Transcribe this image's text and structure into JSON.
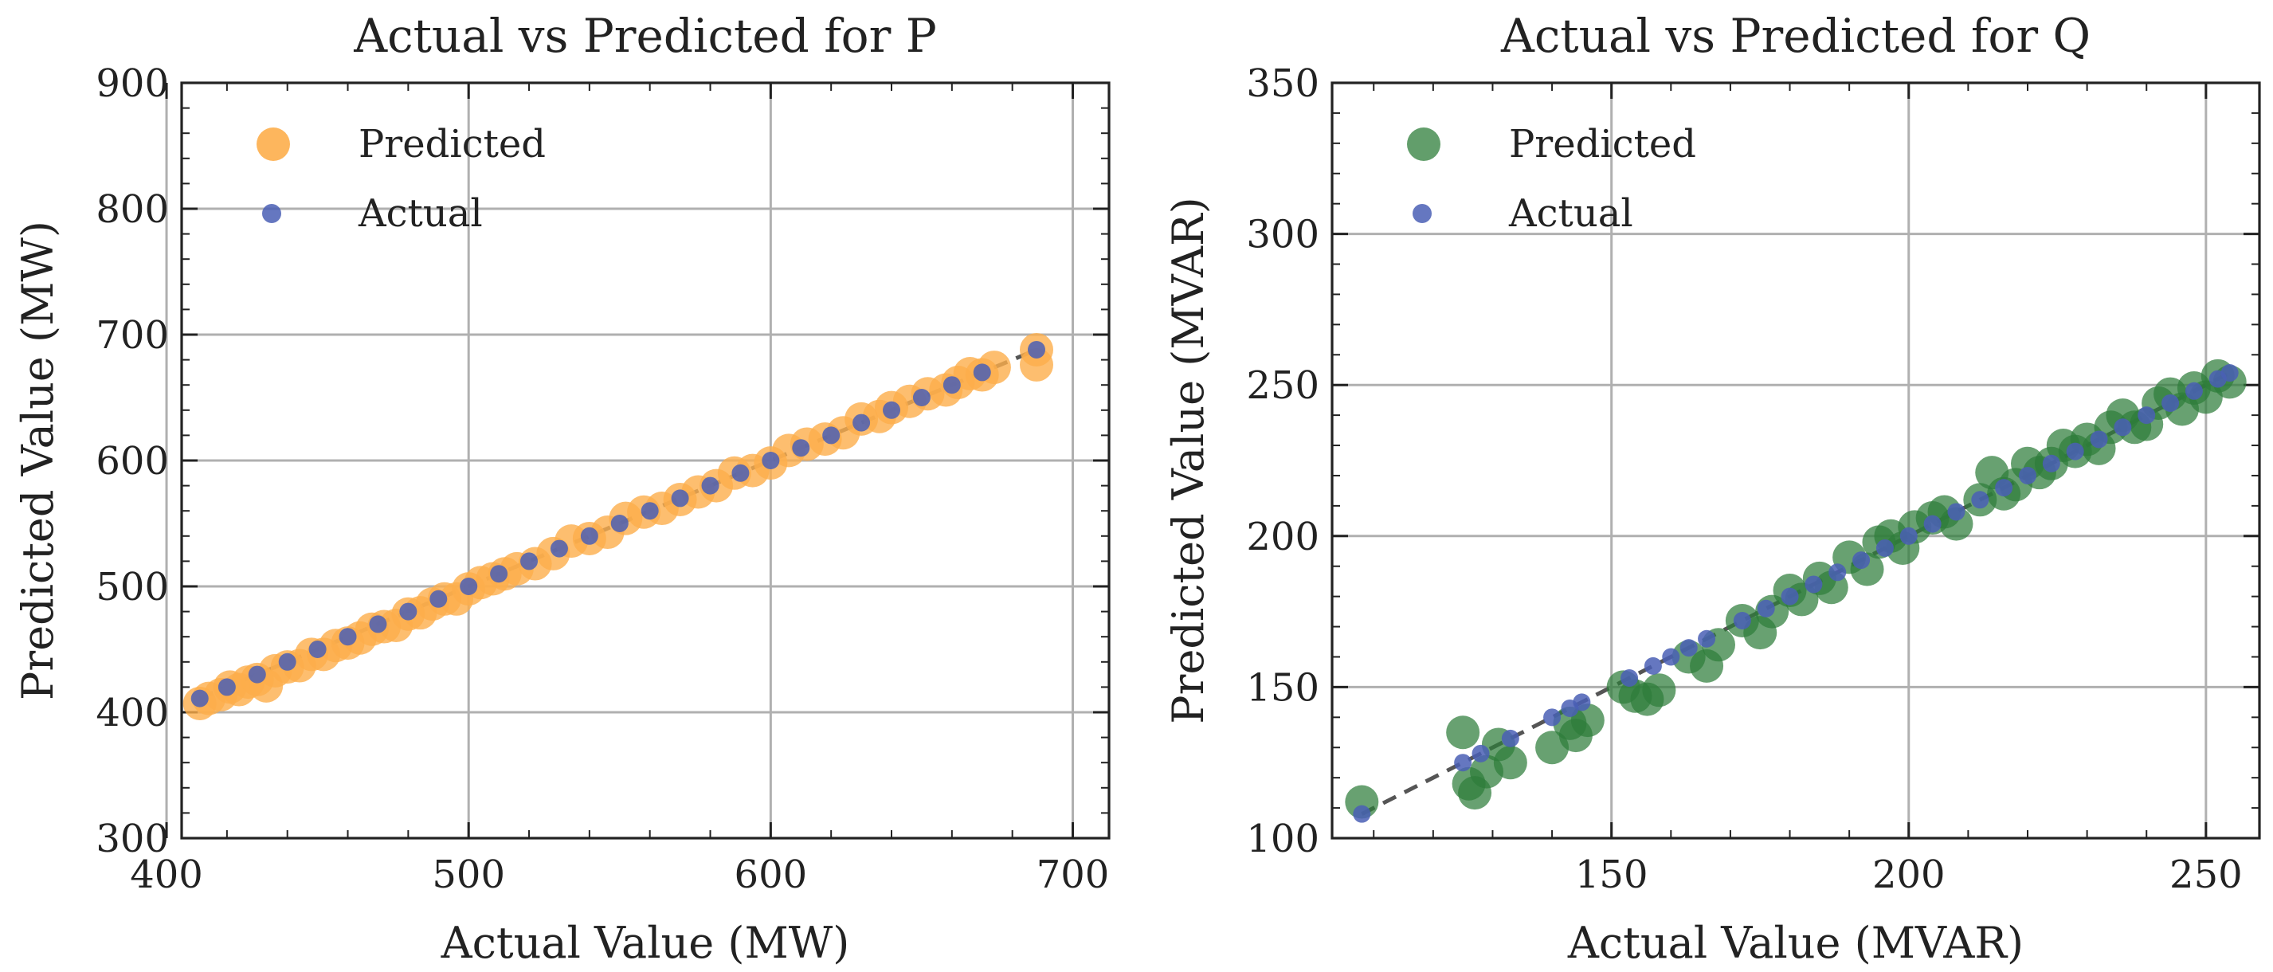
{
  "chart_data": [
    {
      "type": "scatter",
      "title": "Actual vs Predicted for P",
      "xlabel": "Actual Value (MW)",
      "ylabel": "Predicted Value (MW)",
      "xlim": [
        405,
        712
      ],
      "ylim": [
        300,
        900
      ],
      "xticks": [
        400,
        500,
        600,
        700
      ],
      "yticks": [
        300,
        400,
        500,
        600,
        700,
        800,
        900
      ],
      "grid": true,
      "legend_position": "upper-left",
      "series": [
        {
          "name": "Predicted",
          "color": "#fdae4b",
          "marker": "large-circle",
          "points": [
            [
              411,
              407
            ],
            [
              414,
              411
            ],
            [
              418,
              414
            ],
            [
              421,
              420
            ],
            [
              424,
              418
            ],
            [
              427,
              424
            ],
            [
              430,
              426
            ],
            [
              433,
              421
            ],
            [
              436,
              433
            ],
            [
              440,
              436
            ],
            [
              444,
              437
            ],
            [
              448,
              446
            ],
            [
              452,
              446
            ],
            [
              456,
              453
            ],
            [
              460,
              455
            ],
            [
              464,
              459
            ],
            [
              468,
              466
            ],
            [
              472,
              468
            ],
            [
              476,
              469
            ],
            [
              480,
              478
            ],
            [
              484,
              479
            ],
            [
              488,
              486
            ],
            [
              492,
              490
            ],
            [
              496,
              490
            ],
            [
              500,
              498
            ],
            [
              504,
              503
            ],
            [
              508,
              506
            ],
            [
              512,
              510
            ],
            [
              516,
              514
            ],
            [
              522,
              518
            ],
            [
              528,
              526
            ],
            [
              534,
              536
            ],
            [
              540,
              538
            ],
            [
              546,
              543
            ],
            [
              552,
              554
            ],
            [
              558,
              559
            ],
            [
              564,
              562
            ],
            [
              570,
              569
            ],
            [
              576,
              575
            ],
            [
              582,
              580
            ],
            [
              588,
              590
            ],
            [
              594,
              592
            ],
            [
              600,
              598
            ],
            [
              606,
              608
            ],
            [
              612,
              613
            ],
            [
              618,
              617
            ],
            [
              624,
              622
            ],
            [
              630,
              633
            ],
            [
              636,
              635
            ],
            [
              640,
              642
            ],
            [
              646,
              647
            ],
            [
              652,
              653
            ],
            [
              658,
              656
            ],
            [
              662,
              662
            ],
            [
              666,
              669
            ],
            [
              670,
              668
            ],
            [
              674,
              674
            ],
            [
              688,
              688
            ],
            [
              688,
              676
            ]
          ]
        },
        {
          "name": "Actual",
          "color": "#4a5fb5",
          "marker": "small-circle",
          "points": [
            [
              411,
              411
            ],
            [
              420,
              420
            ],
            [
              430,
              430
            ],
            [
              440,
              440
            ],
            [
              450,
              450
            ],
            [
              460,
              460
            ],
            [
              470,
              470
            ],
            [
              480,
              480
            ],
            [
              490,
              490
            ],
            [
              500,
              500
            ],
            [
              510,
              510
            ],
            [
              520,
              520
            ],
            [
              530,
              530
            ],
            [
              540,
              540
            ],
            [
              550,
              550
            ],
            [
              560,
              560
            ],
            [
              570,
              570
            ],
            [
              580,
              580
            ],
            [
              590,
              590
            ],
            [
              600,
              600
            ],
            [
              610,
              610
            ],
            [
              620,
              620
            ],
            [
              630,
              630
            ],
            [
              640,
              640
            ],
            [
              650,
              650
            ],
            [
              660,
              660
            ],
            [
              670,
              670
            ],
            [
              688,
              688
            ]
          ]
        }
      ],
      "reference_line": {
        "type": "y=x",
        "style": "dashed",
        "color": "#555555"
      }
    },
    {
      "type": "scatter",
      "title": "Actual vs Predicted for Q",
      "xlabel": "Actual Value (MVAR)",
      "ylabel": "Predicted Value (MVAR)",
      "xlim": [
        103,
        259
      ],
      "ylim": [
        100,
        350
      ],
      "xticks": [
        150,
        200,
        250
      ],
      "yticks": [
        100,
        150,
        200,
        250,
        300,
        350
      ],
      "grid": true,
      "legend_position": "upper-left",
      "series": [
        {
          "name": "Predicted",
          "color": "#2e7d3a",
          "marker": "large-circle",
          "points": [
            [
              108,
              112
            ],
            [
              125,
              135
            ],
            [
              126,
              118
            ],
            [
              127,
              115
            ],
            [
              129,
              122
            ],
            [
              131,
              131
            ],
            [
              133,
              125
            ],
            [
              140,
              130
            ],
            [
              143,
              138
            ],
            [
              144,
              134
            ],
            [
              146,
              139
            ],
            [
              152,
              150
            ],
            [
              154,
              147
            ],
            [
              156,
              146
            ],
            [
              158,
              149
            ],
            [
              163,
              160
            ],
            [
              166,
              157
            ],
            [
              168,
              164
            ],
            [
              172,
              172
            ],
            [
              175,
              168
            ],
            [
              177,
              175
            ],
            [
              180,
              182
            ],
            [
              182,
              179
            ],
            [
              185,
              186
            ],
            [
              187,
              183
            ],
            [
              190,
              193
            ],
            [
              193,
              189
            ],
            [
              195,
              198
            ],
            [
              197,
              200
            ],
            [
              199,
              196
            ],
            [
              201,
              203
            ],
            [
              204,
              206
            ],
            [
              206,
              208
            ],
            [
              208,
              204
            ],
            [
              212,
              212
            ],
            [
              214,
              221
            ],
            [
              216,
              214
            ],
            [
              218,
              217
            ],
            [
              220,
              224
            ],
            [
              222,
              221
            ],
            [
              224,
              224
            ],
            [
              226,
              230
            ],
            [
              228,
              228
            ],
            [
              230,
              232
            ],
            [
              232,
              229
            ],
            [
              234,
              236
            ],
            [
              236,
              240
            ],
            [
              238,
              236
            ],
            [
              240,
              237
            ],
            [
              242,
              244
            ],
            [
              244,
              247
            ],
            [
              246,
              242
            ],
            [
              248,
              249
            ],
            [
              250,
              246
            ],
            [
              252,
              253
            ],
            [
              254,
              251
            ]
          ]
        },
        {
          "name": "Actual",
          "color": "#4a5fb5",
          "marker": "small-circle",
          "points": [
            [
              108,
              108
            ],
            [
              125,
              125
            ],
            [
              128,
              128
            ],
            [
              133,
              133
            ],
            [
              140,
              140
            ],
            [
              143,
              143
            ],
            [
              145,
              145
            ],
            [
              153,
              153
            ],
            [
              157,
              157
            ],
            [
              160,
              160
            ],
            [
              163,
              163
            ],
            [
              166,
              166
            ],
            [
              172,
              172
            ],
            [
              176,
              176
            ],
            [
              180,
              180
            ],
            [
              184,
              184
            ],
            [
              188,
              188
            ],
            [
              192,
              192
            ],
            [
              196,
              196
            ],
            [
              200,
              200
            ],
            [
              204,
              204
            ],
            [
              208,
              208
            ],
            [
              212,
              212
            ],
            [
              216,
              216
            ],
            [
              220,
              220
            ],
            [
              224,
              224
            ],
            [
              228,
              228
            ],
            [
              232,
              232
            ],
            [
              236,
              236
            ],
            [
              240,
              240
            ],
            [
              244,
              244
            ],
            [
              248,
              248
            ],
            [
              252,
              252
            ],
            [
              254,
              254
            ]
          ]
        }
      ],
      "reference_line": {
        "type": "y=x",
        "style": "dashed",
        "color": "#555555"
      }
    }
  ]
}
